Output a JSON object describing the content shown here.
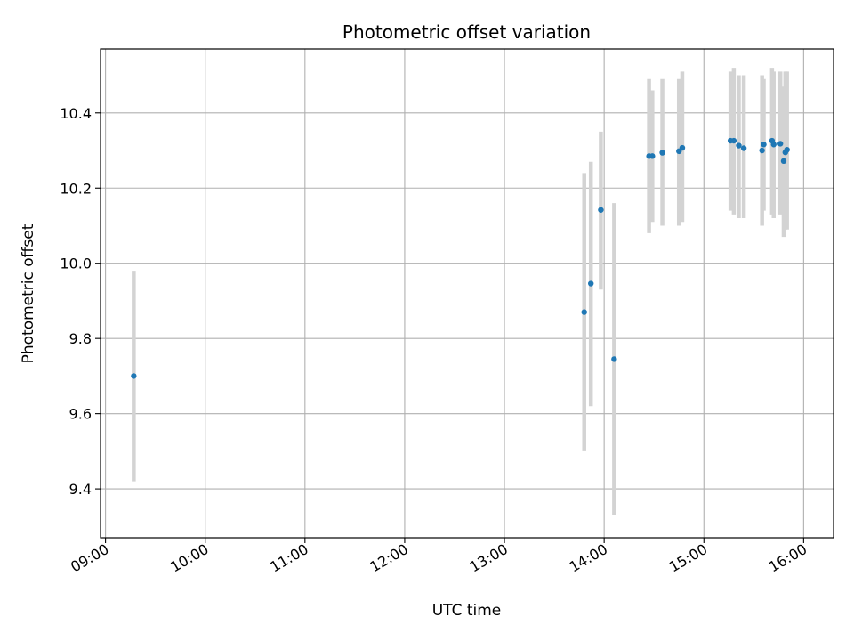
{
  "chart_data": {
    "type": "scatter",
    "title": "Photometric offset variation",
    "xlabel": "UTC time",
    "ylabel": "Photometric offset",
    "xlim": [
      "08:57",
      "16:18"
    ],
    "ylim": [
      9.27,
      10.57
    ],
    "x_ticks": [
      "09:00",
      "10:00",
      "11:00",
      "12:00",
      "13:00",
      "14:00",
      "15:00",
      "16:00"
    ],
    "y_ticks": [
      9.4,
      9.6,
      9.8,
      10.0,
      10.2,
      10.4
    ],
    "grid": true,
    "colors": {
      "point": "#1f77b4",
      "errorbar": "#d3d3d3",
      "grid": "#b0b0b0"
    },
    "series": [
      {
        "points": [
          {
            "x": "09:17",
            "y": 9.7,
            "yerr": [
              9.42,
              9.98
            ]
          },
          {
            "x": "13:48",
            "y": 9.87,
            "yerr": [
              9.5,
              10.24
            ]
          },
          {
            "x": "13:52",
            "y": 9.946,
            "yerr": [
              9.62,
              10.27
            ]
          },
          {
            "x": "13:58",
            "y": 10.142,
            "yerr": [
              9.93,
              10.35
            ]
          },
          {
            "x": "14:06",
            "y": 9.745,
            "yerr": [
              9.33,
              10.16
            ]
          },
          {
            "x": "14:27",
            "y": 10.285,
            "yerr": [
              10.08,
              10.49
            ]
          },
          {
            "x": "14:29",
            "y": 10.285,
            "yerr": [
              10.11,
              10.46
            ]
          },
          {
            "x": "14:35",
            "y": 10.294,
            "yerr": [
              10.1,
              10.49
            ]
          },
          {
            "x": "14:45",
            "y": 10.298,
            "yerr": [
              10.1,
              10.49
            ]
          },
          {
            "x": "14:47",
            "y": 10.307,
            "yerr": [
              10.11,
              10.51
            ]
          },
          {
            "x": "15:16",
            "y": 10.326,
            "yerr": [
              10.14,
              10.51
            ]
          },
          {
            "x": "15:18",
            "y": 10.326,
            "yerr": [
              10.13,
              10.52
            ]
          },
          {
            "x": "15:21",
            "y": 10.313,
            "yerr": [
              10.12,
              10.5
            ]
          },
          {
            "x": "15:24",
            "y": 10.306,
            "yerr": [
              10.12,
              10.5
            ]
          },
          {
            "x": "15:35",
            "y": 10.3,
            "yerr": [
              10.1,
              10.5
            ]
          },
          {
            "x": "15:36",
            "y": 10.316,
            "yerr": [
              10.14,
              10.49
            ]
          },
          {
            "x": "15:41",
            "y": 10.326,
            "yerr": [
              10.13,
              10.52
            ]
          },
          {
            "x": "15:42",
            "y": 10.316,
            "yerr": [
              10.12,
              10.51
            ]
          },
          {
            "x": "15:46",
            "y": 10.318,
            "yerr": [
              10.13,
              10.51
            ]
          },
          {
            "x": "15:48",
            "y": 10.272,
            "yerr": [
              10.07,
              10.47
            ]
          },
          {
            "x": "15:49",
            "y": 10.295,
            "yerr": [
              10.09,
              10.51
            ]
          },
          {
            "x": "15:50",
            "y": 10.302,
            "yerr": [
              10.09,
              10.51
            ]
          }
        ]
      }
    ]
  }
}
